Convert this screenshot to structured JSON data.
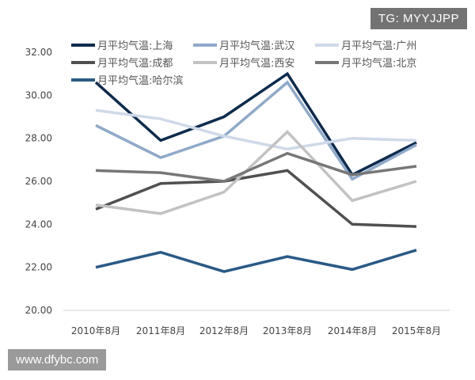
{
  "chart_data": {
    "type": "line",
    "title": "",
    "xlabel": "",
    "ylabel": "",
    "categories": [
      "2010年8月",
      "2011年8月",
      "2012年8月",
      "2013年8月",
      "2014年8月",
      "2015年8月"
    ],
    "ylim": [
      20,
      32
    ],
    "yticks": [
      "20.00",
      "22.00",
      "24.00",
      "26.00",
      "28.00",
      "30.00",
      "32.00"
    ],
    "grid": false,
    "legend": "top",
    "series": [
      {
        "name": "月平均气温:上海",
        "color": "#0d2b4e",
        "values": [
          30.6,
          27.9,
          29.0,
          31.0,
          26.3,
          27.8
        ]
      },
      {
        "name": "月平均气温:武汉",
        "color": "#8fa9c9",
        "values": [
          28.6,
          27.1,
          28.1,
          30.6,
          26.1,
          27.7
        ]
      },
      {
        "name": "月平均气温:广州",
        "color": "#cfd9e9",
        "values": [
          29.3,
          28.9,
          28.1,
          27.5,
          28.0,
          27.9
        ]
      },
      {
        "name": "月平均气温:成都",
        "color": "#505050",
        "values": [
          24.7,
          25.9,
          26.0,
          26.5,
          24.0,
          23.9
        ]
      },
      {
        "name": "月平均气温:西安",
        "color": "#c2c2c2",
        "values": [
          24.9,
          24.5,
          25.5,
          28.3,
          25.1,
          26.0
        ]
      },
      {
        "name": "月平均气温:北京",
        "color": "#777777",
        "values": [
          26.5,
          26.4,
          26.0,
          27.3,
          26.3,
          26.7
        ]
      },
      {
        "name": "月平均气温:哈尔滨",
        "color": "#2a5a86",
        "values": [
          22.0,
          22.7,
          21.8,
          22.5,
          21.9,
          22.8
        ]
      }
    ]
  },
  "watermarks": {
    "top": "TG: MYYJJPP",
    "bottom": "www.dfybc.com"
  }
}
